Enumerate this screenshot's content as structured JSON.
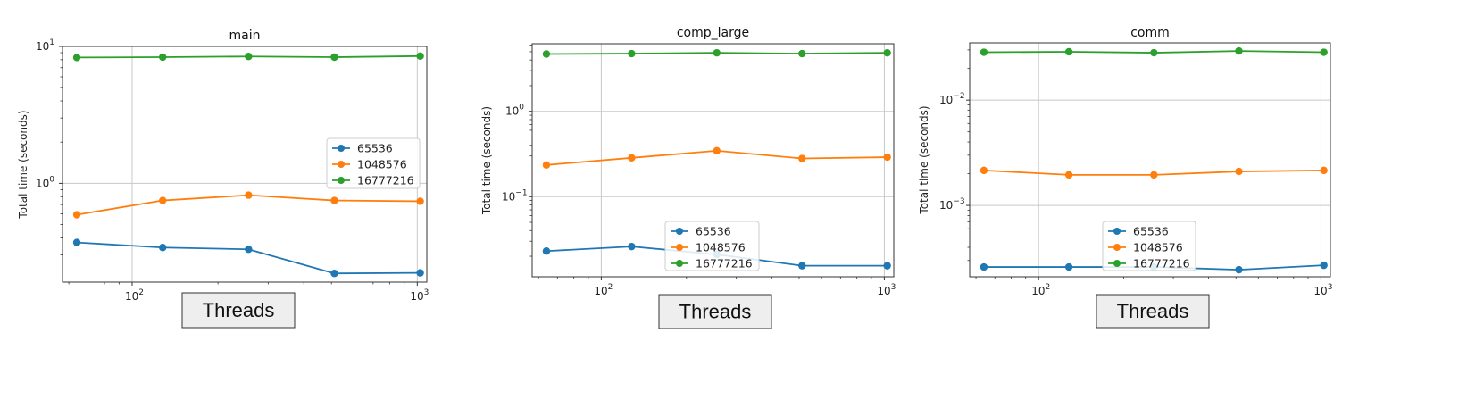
{
  "chart_data": [
    {
      "type": "line",
      "title": "main",
      "ylabel": "Total time (seconds)",
      "xlabel": "Threads",
      "xscale": "log",
      "yscale": "log",
      "xlim": [
        57,
        1080
      ],
      "ylim": [
        0.19,
        10
      ],
      "x": [
        64,
        128,
        256,
        512,
        1024
      ],
      "x_ticks": [
        {
          "value": 100,
          "base": "10",
          "exp": "2"
        },
        {
          "value": 1000,
          "base": "10",
          "exp": "3"
        }
      ],
      "y_ticks": [
        {
          "value": 1,
          "base": "10",
          "exp": "0"
        },
        {
          "value": 10,
          "base": "10",
          "exp": "1"
        }
      ],
      "legend": "center-right",
      "grid": true,
      "series": [
        {
          "name": "65536",
          "color": "#1f77b4",
          "values": [
            0.37,
            0.34,
            0.33,
            0.22,
            0.222
          ]
        },
        {
          "name": "1048576",
          "color": "#ff7f0e",
          "values": [
            0.59,
            0.75,
            0.82,
            0.75,
            0.74
          ]
        },
        {
          "name": "16777216",
          "color": "#2ca02c",
          "values": [
            8.3,
            8.35,
            8.45,
            8.35,
            8.5
          ]
        }
      ]
    },
    {
      "type": "line",
      "title": "comp_large",
      "ylabel": "Total time (seconds)",
      "xlabel": "Threads",
      "xscale": "log",
      "yscale": "log",
      "xlim": [
        57,
        1080
      ],
      "ylim": [
        0.0115,
        6.2
      ],
      "x": [
        64,
        128,
        256,
        512,
        1024
      ],
      "x_ticks": [
        {
          "value": 100,
          "base": "10",
          "exp": "2"
        },
        {
          "value": 1000,
          "base": "10",
          "exp": "3"
        }
      ],
      "y_ticks": [
        {
          "value": 0.1,
          "base": "10",
          "exp": "−1"
        },
        {
          "value": 1,
          "base": "10",
          "exp": "0"
        }
      ],
      "legend": "lower-center",
      "grid": true,
      "series": [
        {
          "name": "65536",
          "color": "#1f77b4",
          "values": [
            0.023,
            0.026,
            0.021,
            0.0155,
            0.0155
          ]
        },
        {
          "name": "1048576",
          "color": "#ff7f0e",
          "values": [
            0.235,
            0.285,
            0.345,
            0.28,
            0.29
          ]
        },
        {
          "name": "16777216",
          "color": "#2ca02c",
          "values": [
            4.7,
            4.75,
            4.85,
            4.75,
            4.85
          ]
        }
      ]
    },
    {
      "type": "line",
      "title": "comm",
      "ylabel": "Total time (seconds)",
      "xlabel": "Threads",
      "xscale": "log",
      "yscale": "log",
      "xlim": [
        57,
        1080
      ],
      "ylim": [
        0.00021,
        0.035
      ],
      "x": [
        64,
        128,
        256,
        512,
        1024
      ],
      "x_ticks": [
        {
          "value": 100,
          "base": "10",
          "exp": "2"
        },
        {
          "value": 1000,
          "base": "10",
          "exp": "3"
        }
      ],
      "y_ticks": [
        {
          "value": 0.001,
          "base": "10",
          "exp": "−3"
        },
        {
          "value": 0.01,
          "base": "10",
          "exp": "−2"
        }
      ],
      "legend": "lower-center",
      "grid": true,
      "series": [
        {
          "name": "65536",
          "color": "#1f77b4",
          "values": [
            0.00026,
            0.00026,
            0.00026,
            0.000245,
            0.00027
          ]
        },
        {
          "name": "1048576",
          "color": "#ff7f0e",
          "values": [
            0.00215,
            0.00195,
            0.00195,
            0.0021,
            0.00215
          ]
        },
        {
          "name": "16777216",
          "color": "#2ca02c",
          "values": [
            0.0285,
            0.0288,
            0.0282,
            0.0293,
            0.0285
          ]
        }
      ]
    }
  ]
}
